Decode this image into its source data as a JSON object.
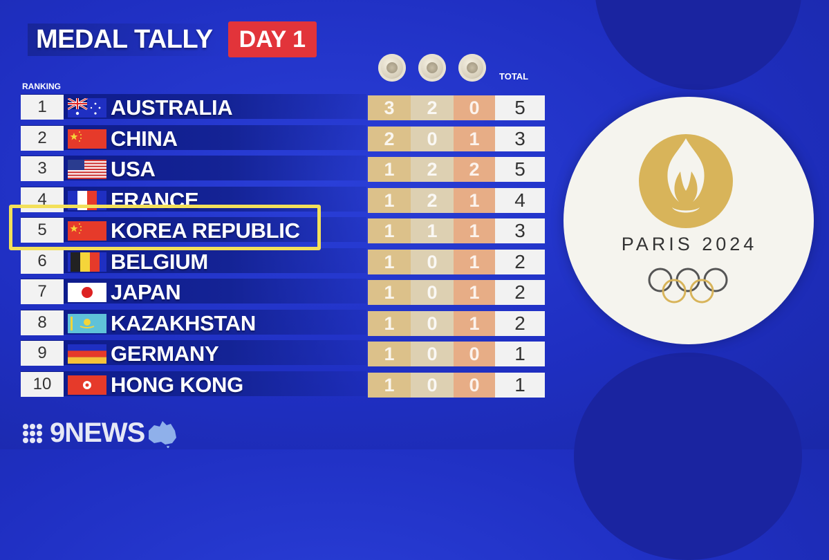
{
  "header": {
    "title": "MEDAL TALLY",
    "day_badge": "DAY 1"
  },
  "labels": {
    "ranking": "RANKING",
    "total": "TOTAL"
  },
  "medal_icons": [
    "gold-medal-icon",
    "silver-medal-icon",
    "bronze-medal-icon"
  ],
  "rows": [
    {
      "rank": "1",
      "country": "AUSTRALIA",
      "gold": "3",
      "silver": "2",
      "bronze": "0",
      "total": "5",
      "flag": "australia-flag"
    },
    {
      "rank": "2",
      "country": "CHINA",
      "gold": "2",
      "silver": "0",
      "bronze": "1",
      "total": "3",
      "flag": "china-flag"
    },
    {
      "rank": "3",
      "country": "USA",
      "gold": "1",
      "silver": "2",
      "bronze": "2",
      "total": "5",
      "flag": "usa-flag"
    },
    {
      "rank": "4",
      "country": "FRANCE",
      "gold": "1",
      "silver": "2",
      "bronze": "1",
      "total": "4",
      "flag": "france-flag"
    },
    {
      "rank": "5",
      "country": "KOREA REPUBLIC",
      "gold": "1",
      "silver": "1",
      "bronze": "1",
      "total": "3",
      "flag": "china-flag"
    },
    {
      "rank": "6",
      "country": "BELGIUM",
      "gold": "1",
      "silver": "0",
      "bronze": "1",
      "total": "2",
      "flag": "belgium-flag"
    },
    {
      "rank": "7",
      "country": "JAPAN",
      "gold": "1",
      "silver": "0",
      "bronze": "1",
      "total": "2",
      "flag": "japan-flag"
    },
    {
      "rank": "8",
      "country": "KAZAKHSTAN",
      "gold": "1",
      "silver": "0",
      "bronze": "1",
      "total": "2",
      "flag": "kazakhstan-flag"
    },
    {
      "rank": "9",
      "country": "GERMANY",
      "gold": "1",
      "silver": "0",
      "bronze": "0",
      "total": "1",
      "flag": "germany-flag"
    },
    {
      "rank": "10",
      "country": "HONG KONG",
      "gold": "1",
      "silver": "0",
      "bronze": "0",
      "total": "1",
      "flag": "hong-kong-flag"
    }
  ],
  "highlighted_row": "5",
  "branding": {
    "paris_text": "PARIS 2024",
    "news_text": "9NEWS"
  },
  "colors": {
    "background": "#1f2fc2",
    "badge_red": "#e2343a",
    "highlight_yellow": "#f3e05a",
    "gold": "#dcc18a",
    "silver": "#ddd0b2",
    "bronze": "#e7ad86",
    "paris_gold": "#d8b45a"
  }
}
